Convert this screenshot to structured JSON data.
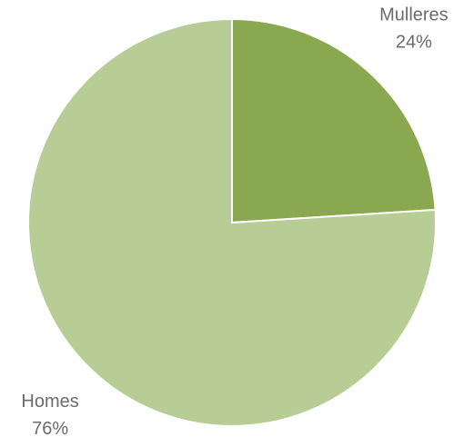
{
  "chart_data": {
    "type": "pie",
    "categories": [
      "Mulleres",
      "Homes"
    ],
    "values": [
      24,
      76
    ],
    "value_labels": [
      "24%",
      "76%"
    ],
    "colors": [
      "#8aa84f",
      "#b8cc96"
    ]
  }
}
